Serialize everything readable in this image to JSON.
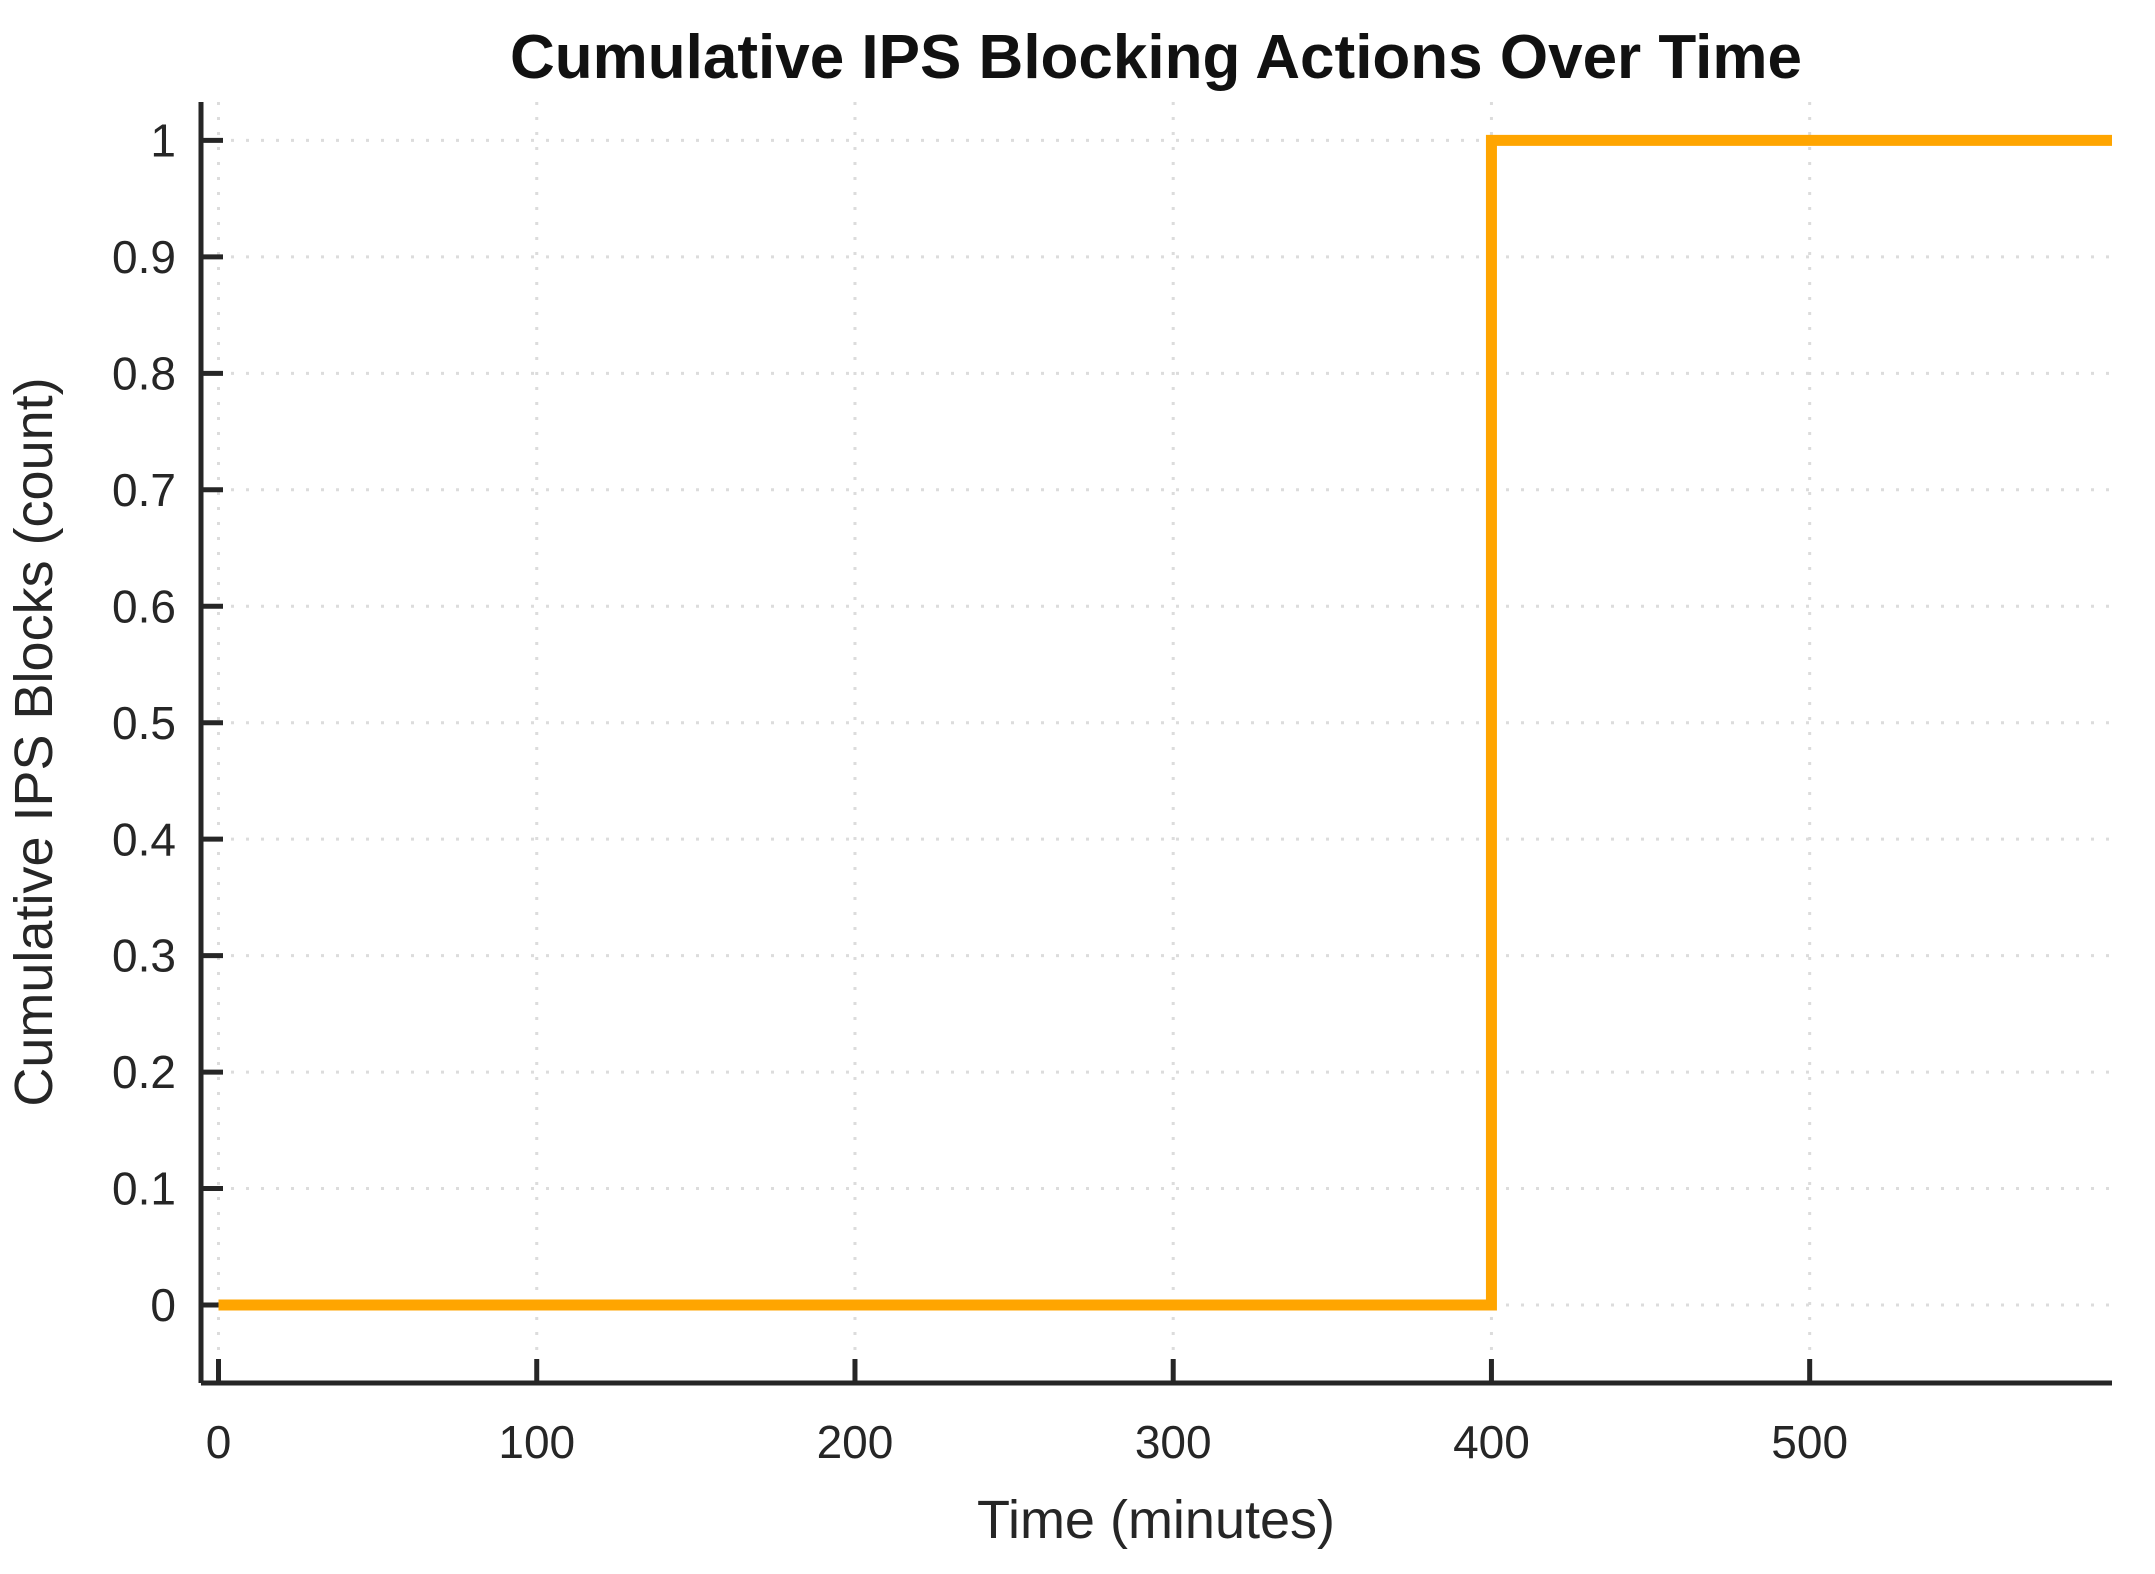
{
  "chart_data": {
    "type": "line",
    "line_style": "step",
    "title": "Cumulative IPS Blocking Actions Over Time",
    "xlabel": "Time (minutes)",
    "ylabel": "Cumulative IPS Blocks (count)",
    "series": [
      {
        "name": "Cumulative IPS blocks",
        "x": [
          0,
          400,
          400,
          595
        ],
        "y": [
          0,
          0,
          1,
          1
        ]
      }
    ],
    "block_event_time_minutes": 400,
    "final_cumulative_count": 1,
    "xticks": [
      0,
      100,
      200,
      300,
      400,
      500
    ],
    "xtick_labels": [
      "0",
      "100",
      "200",
      "300",
      "400",
      "500"
    ],
    "yticks": [
      0,
      0.1,
      0.2,
      0.3,
      0.4,
      0.5,
      0.6,
      0.7,
      0.8,
      0.9,
      1
    ],
    "ytick_labels": [
      "0",
      "0.1",
      "0.2",
      "0.3",
      "0.4",
      "0.5",
      "0.6",
      "0.7",
      "0.8",
      "0.9",
      "1"
    ],
    "xlim": [
      -5.5,
      595
    ],
    "ylim": [
      -0.067,
      1.033
    ],
    "grid": "dotted",
    "legend": "none",
    "line_color": "#FFA500",
    "line_width": 11,
    "axis_color": "#262626",
    "grid_color": "#DCDCDC",
    "background_color": "#FFFFFF"
  }
}
